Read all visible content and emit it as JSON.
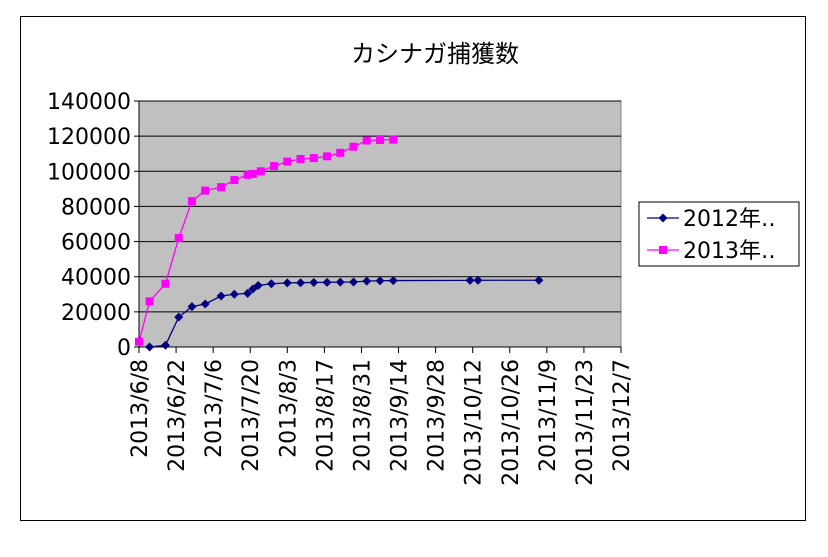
{
  "chart_data": {
    "type": "line",
    "title": "カシナガ捕獲数",
    "xlabel": "",
    "ylabel": "",
    "ylim": [
      0,
      140000
    ],
    "y_ticks": [
      "0",
      "20000",
      "40000",
      "60000",
      "80000",
      "100000",
      "120000",
      "140000"
    ],
    "x_range": [
      "2013-06-08",
      "2013-12-07"
    ],
    "x_tick_labels": [
      "2013/6/8",
      "2013/6/22",
      "2013/7/6",
      "2013/7/20",
      "2013/8/3",
      "2013/8/17",
      "2013/8/31",
      "2013/9/14",
      "2013/9/28",
      "2013/10/12",
      "2013/10/26",
      "2013/11/9",
      "2013/11/23",
      "2013/12/7"
    ],
    "grid": true,
    "plot_background": "#c0c0c0",
    "legend_position": "right",
    "series": [
      {
        "name": "2012年‥",
        "color": "#000080",
        "marker": "diamond",
        "points": [
          [
            "2013-06-12",
            0
          ],
          [
            "2013-06-18",
            1000
          ],
          [
            "2013-06-23",
            17000
          ],
          [
            "2013-06-28",
            23000
          ],
          [
            "2013-07-03",
            24500
          ],
          [
            "2013-07-09",
            29000
          ],
          [
            "2013-07-14",
            30000
          ],
          [
            "2013-07-19",
            30500
          ],
          [
            "2013-07-21",
            33000
          ],
          [
            "2013-07-23",
            35000
          ],
          [
            "2013-07-28",
            36000
          ],
          [
            "2013-08-03",
            36500
          ],
          [
            "2013-08-08",
            36600
          ],
          [
            "2013-08-13",
            36700
          ],
          [
            "2013-08-18",
            36800
          ],
          [
            "2013-08-23",
            36900
          ],
          [
            "2013-08-28",
            37000
          ],
          [
            "2013-09-02",
            37500
          ],
          [
            "2013-09-07",
            37700
          ],
          [
            "2013-09-12",
            37800
          ],
          [
            "2013-10-11",
            37900
          ],
          [
            "2013-10-14",
            38000
          ],
          [
            "2013-11-06",
            38000
          ]
        ]
      },
      {
        "name": "2013年‥",
        "color": "#ff00ff",
        "marker": "square",
        "points": [
          [
            "2013-06-08",
            3000
          ],
          [
            "2013-06-12",
            26000
          ],
          [
            "2013-06-18",
            36000
          ],
          [
            "2013-06-23",
            62000
          ],
          [
            "2013-06-28",
            83000
          ],
          [
            "2013-07-03",
            89000
          ],
          [
            "2013-07-09",
            91000
          ],
          [
            "2013-07-14",
            95000
          ],
          [
            "2013-07-19",
            98000
          ],
          [
            "2013-07-21",
            98500
          ],
          [
            "2013-07-24",
            100000
          ],
          [
            "2013-07-29",
            103000
          ],
          [
            "2013-08-03",
            105500
          ],
          [
            "2013-08-08",
            107000
          ],
          [
            "2013-08-13",
            107500
          ],
          [
            "2013-08-18",
            108500
          ],
          [
            "2013-08-23",
            110500
          ],
          [
            "2013-08-28",
            114000
          ],
          [
            "2013-09-02",
            117500
          ],
          [
            "2013-09-07",
            117800
          ],
          [
            "2013-09-12",
            118000
          ]
        ]
      }
    ]
  }
}
